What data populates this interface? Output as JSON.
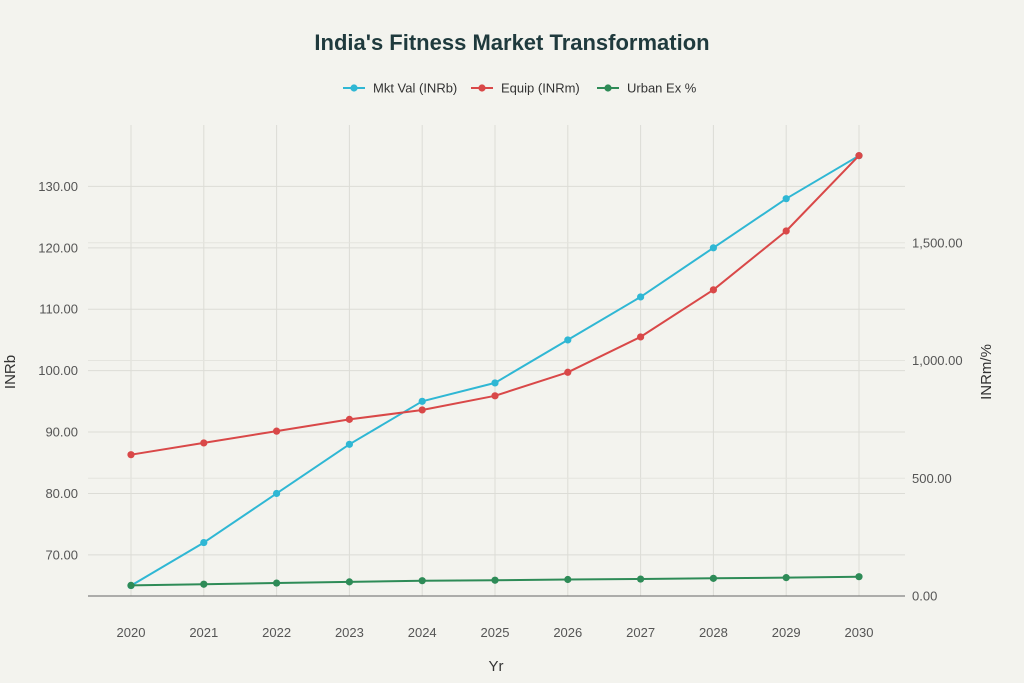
{
  "chart_data": {
    "type": "line",
    "title": "India's Fitness Market Transformation",
    "xlabel": "Yr",
    "ylabel": "INRb",
    "ylabel_right": "INRm/%",
    "x": [
      "2020",
      "2021",
      "2022",
      "2023",
      "2024",
      "2025",
      "2026",
      "2027",
      "2028",
      "2029",
      "2030"
    ],
    "ylim": [
      63.3,
      140
    ],
    "ylim_right": [
      0,
      2000
    ],
    "yticks": [
      "70.00",
      "80.00",
      "90.00",
      "100.00",
      "110.00",
      "120.00",
      "130.00"
    ],
    "yticks_right": [
      "0.00",
      "500.00",
      "1,000.00",
      "1,500.00"
    ],
    "grid": true,
    "legend_position": "top-center",
    "series": [
      {
        "name": "Mkt Val (INRb)",
        "axis": "left",
        "color": "#2fb7d4",
        "values": [
          65,
          72,
          80,
          88,
          95,
          98,
          105,
          112,
          120,
          128,
          135
        ]
      },
      {
        "name": "Equip (INRm)",
        "axis": "right",
        "color": "#d94848",
        "values": [
          600,
          650,
          700,
          750,
          790,
          850,
          950,
          1100,
          1300,
          1550,
          1870
        ]
      },
      {
        "name": "Urban Ex %",
        "axis": "right",
        "color": "#2e8b57",
        "values": [
          45,
          50,
          55,
          60,
          65,
          67,
          70,
          72,
          75,
          78,
          82
        ]
      }
    ]
  }
}
